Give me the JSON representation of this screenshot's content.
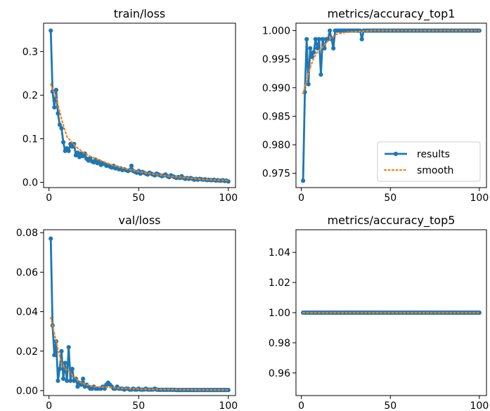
{
  "chart_data": [
    {
      "type": "line",
      "title": "train/loss",
      "xlabel": "",
      "ylabel": "",
      "xlim": [
        -3,
        104
      ],
      "ylim": [
        -0.012,
        0.365
      ],
      "xticks": [
        0,
        50,
        100
      ],
      "xtick_labels": [
        "0",
        "50",
        "100"
      ],
      "yticks": [
        0.0,
        0.1,
        0.2,
        0.3
      ],
      "ytick_labels": [
        "0.0",
        "0.1",
        "0.2",
        "0.3"
      ],
      "grid": false,
      "legend": false,
      "series": [
        {
          "name": "results",
          "color": "#1f77b4",
          "style": "solid-markers",
          "x": [
            1,
            2,
            3,
            4,
            5,
            6,
            7,
            8,
            9,
            10,
            11,
            12,
            13,
            14,
            15,
            16,
            17,
            18,
            19,
            20,
            21,
            22,
            23,
            24,
            25,
            26,
            27,
            28,
            29,
            30,
            31,
            32,
            33,
            34,
            35,
            36,
            37,
            38,
            39,
            40,
            41,
            42,
            43,
            44,
            45,
            46,
            47,
            48,
            49,
            50,
            51,
            52,
            53,
            54,
            55,
            56,
            57,
            58,
            59,
            60,
            61,
            62,
            63,
            64,
            65,
            66,
            67,
            68,
            69,
            70,
            71,
            72,
            73,
            74,
            75,
            76,
            77,
            78,
            79,
            80,
            81,
            82,
            83,
            84,
            85,
            86,
            87,
            88,
            89,
            90,
            91,
            92,
            93,
            94,
            95,
            96,
            97,
            98,
            99,
            100
          ],
          "y": [
            0.348,
            0.208,
            0.172,
            0.212,
            0.158,
            0.132,
            0.124,
            0.092,
            0.072,
            0.078,
            0.072,
            0.088,
            0.082,
            0.088,
            0.062,
            0.068,
            0.058,
            0.066,
            0.06,
            0.066,
            0.054,
            0.05,
            0.056,
            0.048,
            0.046,
            0.052,
            0.044,
            0.048,
            0.04,
            0.044,
            0.042,
            0.038,
            0.04,
            0.036,
            0.034,
            0.038,
            0.032,
            0.034,
            0.03,
            0.032,
            0.028,
            0.03,
            0.028,
            0.026,
            0.028,
            0.038,
            0.026,
            0.024,
            0.022,
            0.026,
            0.02,
            0.024,
            0.022,
            0.02,
            0.018,
            0.022,
            0.02,
            0.018,
            0.016,
            0.02,
            0.018,
            0.016,
            0.014,
            0.016,
            0.018,
            0.014,
            0.012,
            0.016,
            0.014,
            0.012,
            0.01,
            0.012,
            0.01,
            0.014,
            0.01,
            0.008,
            0.01,
            0.008,
            0.01,
            0.008,
            0.006,
            0.008,
            0.006,
            0.008,
            0.007,
            0.006,
            0.007,
            0.005,
            0.006,
            0.005,
            0.005,
            0.006,
            0.004,
            0.005,
            0.004,
            0.004,
            0.005,
            0.003,
            0.004,
            0.002
          ]
        },
        {
          "name": "smooth",
          "color": "#ff7f0e",
          "style": "dotted",
          "x": [
            1,
            4,
            7,
            10,
            15,
            20,
            25,
            30,
            35,
            40,
            45,
            50,
            55,
            60,
            65,
            70,
            75,
            80,
            85,
            90,
            95,
            100
          ],
          "y": [
            0.225,
            0.195,
            0.145,
            0.105,
            0.082,
            0.066,
            0.056,
            0.048,
            0.04,
            0.034,
            0.029,
            0.025,
            0.021,
            0.018,
            0.015,
            0.013,
            0.011,
            0.009,
            0.007,
            0.006,
            0.005,
            0.004
          ]
        }
      ]
    },
    {
      "type": "line",
      "title": "metrics/accuracy_top1",
      "xlabel": "",
      "ylabel": "",
      "xlim": [
        -3,
        104
      ],
      "ylim": [
        0.9725,
        1.0013
      ],
      "xticks": [
        0,
        50,
        100
      ],
      "xtick_labels": [
        "0",
        "50",
        "100"
      ],
      "yticks": [
        0.975,
        0.98,
        0.985,
        0.99,
        0.995,
        1.0
      ],
      "ytick_labels": [
        "0.975",
        "0.980",
        "0.985",
        "0.990",
        "0.995",
        "1.000"
      ],
      "grid": false,
      "legend": true,
      "legend_position": "lower-right",
      "series": [
        {
          "name": "results",
          "color": "#1f77b4",
          "style": "solid-markers",
          "x": [
            1,
            2,
            3,
            4,
            5,
            6,
            7,
            8,
            9,
            10,
            11,
            12,
            13,
            14,
            15,
            16,
            17,
            18,
            19,
            20,
            21,
            22,
            23,
            24,
            25,
            26,
            27,
            28,
            29,
            30,
            31,
            32,
            33,
            34,
            35,
            36,
            37,
            38,
            39,
            40,
            41,
            42,
            43,
            44,
            45,
            46,
            47,
            48,
            49,
            50,
            51,
            52,
            53,
            54,
            55,
            56,
            57,
            58,
            59,
            60,
            61,
            62,
            63,
            64,
            65,
            66,
            67,
            68,
            69,
            70,
            71,
            72,
            73,
            74,
            75,
            76,
            77,
            78,
            79,
            80,
            81,
            82,
            83,
            84,
            85,
            86,
            87,
            88,
            89,
            90,
            91,
            92,
            93,
            94,
            95,
            96,
            97,
            98,
            99,
            100
          ],
          "y": [
            0.9737,
            0.9892,
            0.9985,
            0.9906,
            0.9969,
            0.9954,
            0.9962,
            0.9985,
            0.9969,
            0.9985,
            0.9923,
            0.9985,
            0.9969,
            0.9985,
            0.9985,
            1.0,
            0.9985,
            0.9969,
            1.0,
            1.0,
            1.0,
            1.0,
            1.0,
            1.0,
            1.0,
            1.0,
            1.0,
            1.0,
            1.0,
            1.0,
            1.0,
            1.0,
            1.0,
            0.9985,
            1.0,
            1.0,
            1.0,
            1.0,
            1.0,
            1.0,
            1.0,
            1.0,
            1.0,
            1.0,
            1.0,
            1.0,
            1.0,
            1.0,
            1.0,
            1.0,
            1.0,
            1.0,
            1.0,
            1.0,
            1.0,
            1.0,
            1.0,
            1.0,
            1.0,
            1.0,
            1.0,
            1.0,
            1.0,
            1.0,
            1.0,
            1.0,
            1.0,
            1.0,
            1.0,
            1.0,
            1.0,
            1.0,
            1.0,
            1.0,
            1.0,
            1.0,
            1.0,
            1.0,
            1.0,
            1.0,
            1.0,
            1.0,
            1.0,
            1.0,
            1.0,
            1.0,
            1.0,
            1.0,
            1.0,
            1.0,
            1.0,
            1.0,
            1.0,
            1.0,
            1.0,
            1.0,
            1.0,
            1.0,
            1.0,
            1.0
          ]
        },
        {
          "name": "smooth",
          "color": "#ff7f0e",
          "style": "dotted",
          "x": [
            1,
            3,
            5,
            7,
            9,
            11,
            13,
            15,
            17,
            20,
            25,
            30,
            40,
            50,
            60,
            70,
            80,
            90,
            100
          ],
          "y": [
            0.989,
            0.9912,
            0.9935,
            0.9952,
            0.9962,
            0.9968,
            0.9975,
            0.9982,
            0.9988,
            0.9994,
            0.9997,
            0.9998,
            1.0,
            1.0,
            1.0,
            1.0,
            1.0,
            1.0,
            1.0
          ]
        }
      ],
      "legend_entries": [
        "results",
        "smooth"
      ]
    },
    {
      "type": "line",
      "title": "val/loss",
      "xlabel": "",
      "ylabel": "",
      "xlim": [
        -3,
        104
      ],
      "ylim": [
        -0.0025,
        0.0815
      ],
      "xticks": [
        0,
        50,
        100
      ],
      "xtick_labels": [
        "0",
        "50",
        "100"
      ],
      "yticks": [
        0.0,
        0.02,
        0.04,
        0.06,
        0.08
      ],
      "ytick_labels": [
        "0.00",
        "0.02",
        "0.04",
        "0.06",
        "0.08"
      ],
      "grid": false,
      "legend": false,
      "series": [
        {
          "name": "results",
          "color": "#1f77b4",
          "style": "solid-markers",
          "x": [
            1,
            2,
            3,
            4,
            5,
            6,
            7,
            8,
            9,
            10,
            11,
            12,
            13,
            14,
            15,
            16,
            17,
            18,
            19,
            20,
            21,
            22,
            23,
            24,
            25,
            26,
            27,
            28,
            29,
            30,
            31,
            32,
            33,
            34,
            35,
            36,
            37,
            38,
            39,
            40,
            41,
            42,
            43,
            44,
            45,
            46,
            47,
            48,
            49,
            50,
            51,
            52,
            53,
            54,
            55,
            56,
            57,
            58,
            59,
            60,
            61,
            62,
            63,
            64,
            65,
            66,
            67,
            68,
            69,
            70,
            71,
            72,
            73,
            74,
            75,
            76,
            77,
            78,
            79,
            80,
            81,
            82,
            83,
            84,
            85,
            86,
            87,
            88,
            89,
            90,
            91,
            92,
            93,
            94,
            95,
            96,
            97,
            98,
            99,
            100
          ],
          "y": [
            0.077,
            0.033,
            0.018,
            0.025,
            0.005,
            0.011,
            0.02,
            0.006,
            0.014,
            0.005,
            0.022,
            0.005,
            0.011,
            0.005,
            0.006,
            0.002,
            0.004,
            0.003,
            0.006,
            0.002,
            0.003,
            0.002,
            0.001,
            0.001,
            0.002,
            0.001,
            0.001,
            0.001,
            0.001,
            0.002,
            0.001,
            0.003,
            0.004,
            0.003,
            0.002,
            0.001,
            0.001,
            0.002,
            0.001,
            0.001,
            0.001,
            0.0005,
            0.001,
            0.001,
            0.0005,
            0.0005,
            0.001,
            0.0005,
            0.0005,
            0.001,
            0.0005,
            0.0005,
            0.0005,
            0.001,
            0.0005,
            0.0005,
            0.0005,
            0.0005,
            0.001,
            0.0005,
            0.0004,
            0.0004,
            0.0004,
            0.0004,
            0.0004,
            0.0004,
            0.0004,
            0.0004,
            0.0004,
            0.0004,
            0.0003,
            0.0003,
            0.0003,
            0.0003,
            0.0003,
            0.0003,
            0.0003,
            0.0003,
            0.0003,
            0.0003,
            0.0003,
            0.0003,
            0.0003,
            0.0003,
            0.0003,
            0.0003,
            0.0003,
            0.0003,
            0.0003,
            0.0003,
            0.0003,
            0.0003,
            0.0003,
            0.0003,
            0.0003,
            0.0003,
            0.0003,
            0.0003,
            0.0003,
            0.0003
          ]
        },
        {
          "name": "smooth",
          "color": "#ff7f0e",
          "style": "dotted",
          "x": [
            1,
            3,
            5,
            7,
            9,
            11,
            13,
            15,
            18,
            21,
            25,
            30,
            35,
            40,
            50,
            60,
            70,
            80,
            90,
            100
          ],
          "y": [
            0.037,
            0.029,
            0.021,
            0.014,
            0.011,
            0.01,
            0.008,
            0.006,
            0.004,
            0.003,
            0.002,
            0.0018,
            0.0016,
            0.0012,
            0.0008,
            0.0006,
            0.0005,
            0.0004,
            0.0003,
            0.0003
          ]
        }
      ]
    },
    {
      "type": "line",
      "title": "metrics/accuracy_top5",
      "xlabel": "",
      "ylabel": "",
      "xlim": [
        -3,
        104
      ],
      "ylim": [
        0.945,
        1.055
      ],
      "xticks": [
        0,
        50,
        100
      ],
      "xtick_labels": [
        "0",
        "50",
        "100"
      ],
      "yticks": [
        0.96,
        0.98,
        1.0,
        1.02,
        1.04
      ],
      "ytick_labels": [
        "0.96",
        "0.98",
        "1.00",
        "1.02",
        "1.04"
      ],
      "grid": false,
      "legend": false,
      "series": [
        {
          "name": "results",
          "color": "#1f77b4",
          "style": "solid-markers",
          "x": [
            1,
            2,
            3,
            4,
            5,
            6,
            7,
            8,
            9,
            10,
            11,
            12,
            13,
            14,
            15,
            16,
            17,
            18,
            19,
            20,
            21,
            22,
            23,
            24,
            25,
            26,
            27,
            28,
            29,
            30,
            31,
            32,
            33,
            34,
            35,
            36,
            37,
            38,
            39,
            40,
            41,
            42,
            43,
            44,
            45,
            46,
            47,
            48,
            49,
            50,
            51,
            52,
            53,
            54,
            55,
            56,
            57,
            58,
            59,
            60,
            61,
            62,
            63,
            64,
            65,
            66,
            67,
            68,
            69,
            70,
            71,
            72,
            73,
            74,
            75,
            76,
            77,
            78,
            79,
            80,
            81,
            82,
            83,
            84,
            85,
            86,
            87,
            88,
            89,
            90,
            91,
            92,
            93,
            94,
            95,
            96,
            97,
            98,
            99,
            100
          ],
          "y": [
            1,
            1,
            1,
            1,
            1,
            1,
            1,
            1,
            1,
            1,
            1,
            1,
            1,
            1,
            1,
            1,
            1,
            1,
            1,
            1,
            1,
            1,
            1,
            1,
            1,
            1,
            1,
            1,
            1,
            1,
            1,
            1,
            1,
            1,
            1,
            1,
            1,
            1,
            1,
            1,
            1,
            1,
            1,
            1,
            1,
            1,
            1,
            1,
            1,
            1,
            1,
            1,
            1,
            1,
            1,
            1,
            1,
            1,
            1,
            1,
            1,
            1,
            1,
            1,
            1,
            1,
            1,
            1,
            1,
            1,
            1,
            1,
            1,
            1,
            1,
            1,
            1,
            1,
            1,
            1,
            1,
            1,
            1,
            1,
            1,
            1,
            1,
            1,
            1,
            1,
            1,
            1,
            1,
            1,
            1,
            1,
            1,
            1,
            1,
            1
          ]
        },
        {
          "name": "smooth",
          "color": "#ff7f0e",
          "style": "dotted",
          "x": [
            1,
            100
          ],
          "y": [
            1,
            1
          ]
        }
      ]
    }
  ]
}
